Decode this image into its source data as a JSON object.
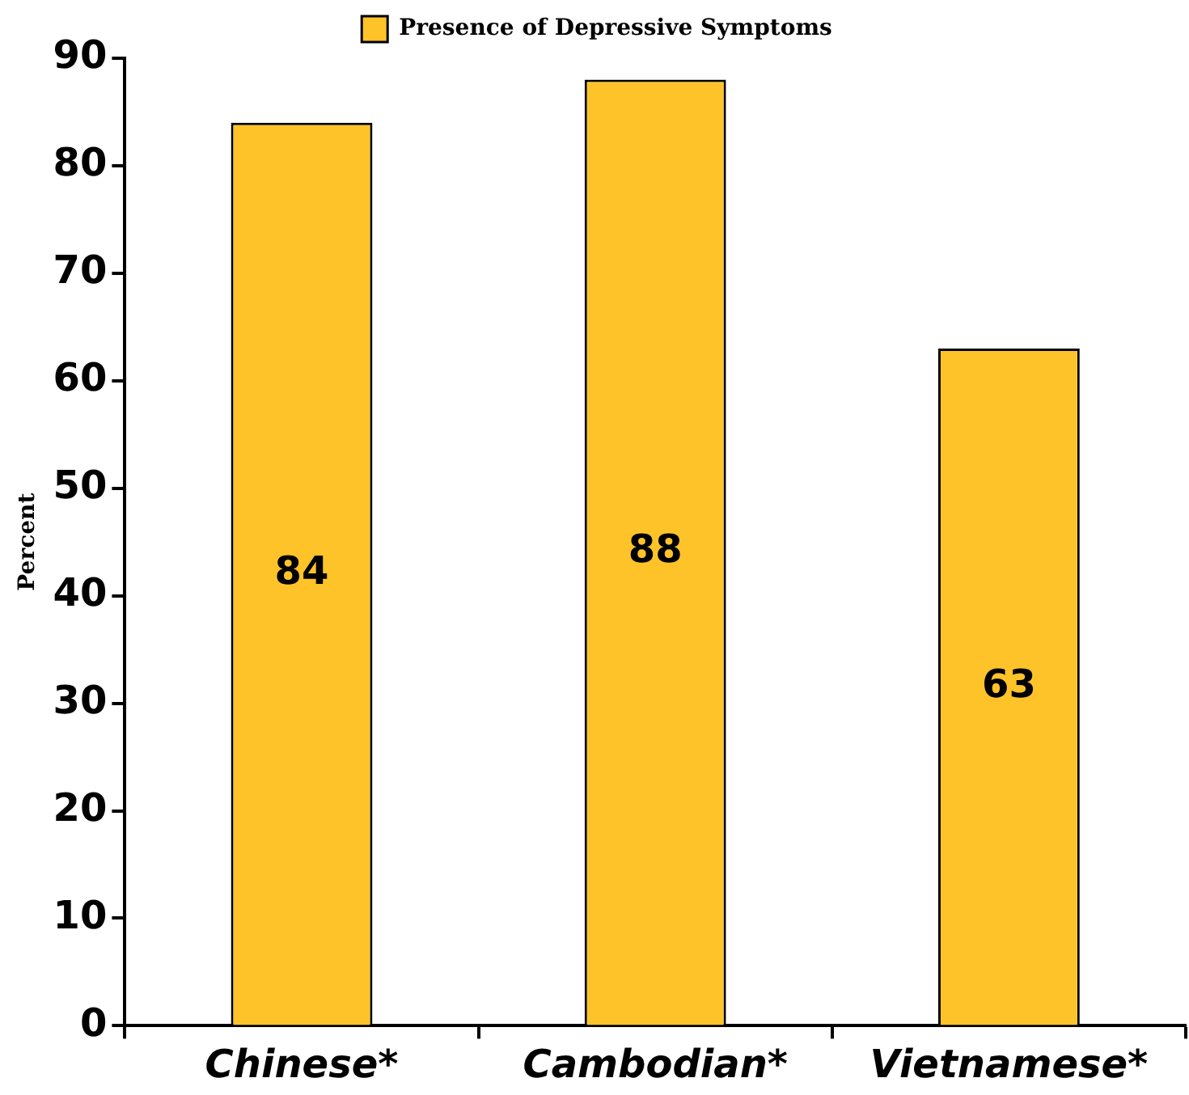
{
  "chart_data": {
    "type": "bar",
    "ylabel": "Percent",
    "categories": [
      "Chinese*",
      "Cambodian*",
      "Vietnamese*"
    ],
    "series": [
      {
        "name": "Presence of Depressive Symptoms",
        "color": "#fdc329",
        "values": [
          84,
          88,
          63
        ]
      }
    ],
    "ylim": [
      0,
      90
    ],
    "yticks": [
      0,
      10,
      20,
      30,
      40,
      50,
      60,
      70,
      80,
      90
    ],
    "grid": false,
    "legend": "top",
    "data_labels": true
  }
}
